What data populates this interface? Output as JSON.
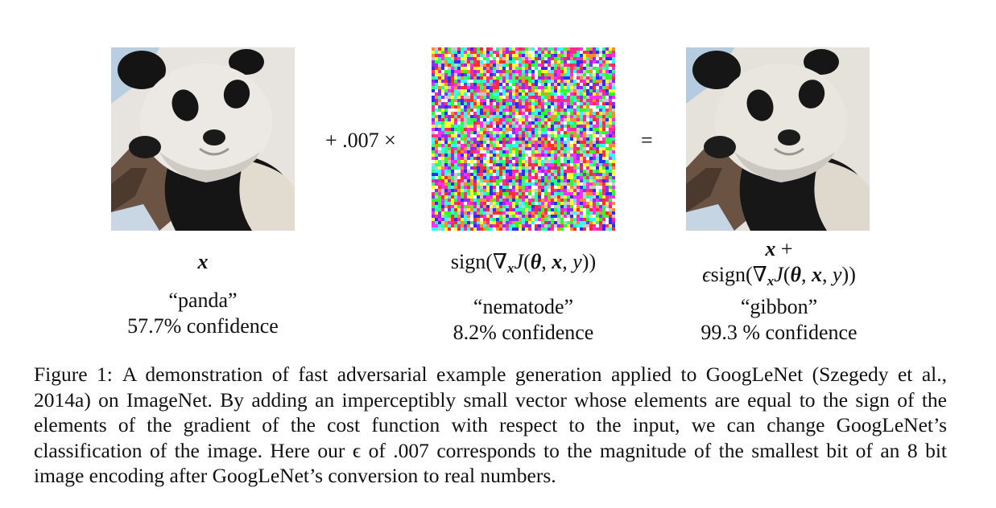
{
  "figure": {
    "panels": [
      {
        "id": "left",
        "image": "panda-original",
        "math_label": "x",
        "class_label": "“panda”",
        "confidence": "57.7% confidence"
      },
      {
        "id": "middle",
        "image": "perturbation-noise",
        "math_label_prefix": "sign(",
        "class_label": "“nematode”",
        "confidence": "8.2% confidence"
      },
      {
        "id": "right",
        "image": "panda-adversarial",
        "class_label": "“gibbon”",
        "confidence": "99.3 % confidence"
      }
    ],
    "operators": {
      "multiply": "+ .007 ×",
      "equals": "="
    }
  },
  "caption": {
    "label": "Figure 1:",
    "text": "A demonstration of fast adversarial example generation applied to GoogLeNet (Szegedy et al., 2014a) on ImageNet. By adding an imperceptibly small vector whose elements are equal to the sign of the elements of the gradient of the cost function with respect to the input, we can change GoogLeNet’s classification of the image. Here our ϵ of .007 corresponds to the magnitude of the smallest bit of an 8 bit image encoding after GoogLeNet’s conversion to real numbers."
  },
  "colors": {
    "text": "#111111",
    "panda_black": "#141414",
    "panda_white": "#e9e6e1",
    "bark": "#6b5444",
    "sky": "#b8cfe0"
  }
}
